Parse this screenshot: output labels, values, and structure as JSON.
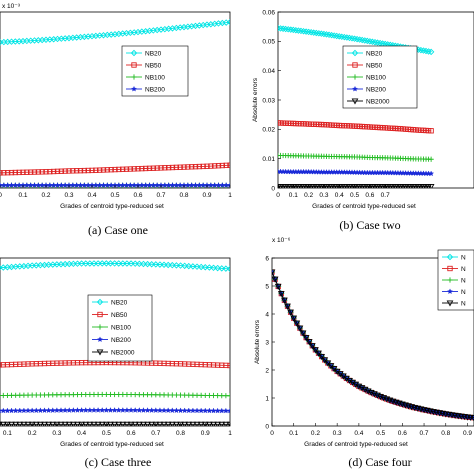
{
  "chart_data": [
    {
      "type": "line",
      "caption": "(a) Case one",
      "xlabel": "Grades of centroid type-reduced set",
      "ylabel": "",
      "exponent_label": "x 10⁻³",
      "xlim": [
        0,
        1
      ],
      "ylim": [
        0,
        6.4
      ],
      "xticks": [
        "0",
        "0.1",
        "0.2",
        "0.3",
        "0.4",
        "0.5",
        "0.6",
        "0.7",
        "0.8",
        "0.9",
        "1"
      ],
      "yticks": [],
      "legend_position": "center-right",
      "series": [
        {
          "name": "NB20",
          "color": "#00e5e5",
          "marker": "diamond",
          "x": [
            0,
            0.1,
            0.2,
            0.3,
            0.4,
            0.5,
            0.6,
            0.7,
            0.8,
            0.9,
            1
          ],
          "y": [
            5.3,
            5.34,
            5.39,
            5.45,
            5.52,
            5.59,
            5.67,
            5.76,
            5.85,
            5.94,
            6.03
          ]
        },
        {
          "name": "NB50",
          "color": "#dd2222",
          "marker": "square",
          "x": [
            0,
            0.1,
            0.2,
            0.3,
            0.4,
            0.5,
            0.6,
            0.7,
            0.8,
            0.9,
            1
          ],
          "y": [
            0.55,
            0.57,
            0.59,
            0.62,
            0.64,
            0.67,
            0.7,
            0.73,
            0.76,
            0.79,
            0.83
          ]
        },
        {
          "name": "NB100",
          "color": "#22bb22",
          "marker": "cross",
          "x": [
            0,
            0.1,
            0.2,
            0.3,
            0.4,
            0.5,
            0.6,
            0.7,
            0.8,
            0.9,
            1
          ],
          "y": [
            0.1,
            0.1,
            0.1,
            0.1,
            0.1,
            0.1,
            0.1,
            0.1,
            0.1,
            0.1,
            0.1
          ]
        },
        {
          "name": "NB200",
          "color": "#1a2ad8",
          "marker": "star",
          "x": [
            0,
            0.1,
            0.2,
            0.3,
            0.4,
            0.5,
            0.6,
            0.7,
            0.8,
            0.9,
            1
          ],
          "y": [
            0.1,
            0.1,
            0.1,
            0.1,
            0.1,
            0.1,
            0.1,
            0.1,
            0.1,
            0.1,
            0.1
          ]
        }
      ]
    },
    {
      "type": "line",
      "caption": "(b) Case two",
      "xlabel": "Grades of centroid type-reduced set",
      "ylabel": "Absolute errors",
      "exponent_label": "",
      "xlim": [
        0,
        1
      ],
      "ylim": [
        0,
        0.06
      ],
      "xticks": [
        "0",
        "0.1",
        "0.2",
        "0.3",
        "0.4",
        "0.5",
        "0.6",
        "0.7"
      ],
      "yticks": [
        "0",
        "0.01",
        "0.02",
        "0.03",
        "0.04",
        "0.05",
        "0.06"
      ],
      "legend_position": "center-right",
      "series": [
        {
          "name": "NB20",
          "color": "#00e5e5",
          "marker": "diamond",
          "x": [
            0,
            0.1,
            0.2,
            0.3,
            0.4,
            0.5,
            0.6,
            0.7,
            0.8,
            0.9,
            1
          ],
          "y": [
            0.0545,
            0.0539,
            0.0532,
            0.0525,
            0.0517,
            0.0509,
            0.05,
            0.0491,
            0.0482,
            0.0473,
            0.0464
          ]
        },
        {
          "name": "NB50",
          "color": "#dd2222",
          "marker": "square",
          "x": [
            0,
            0.1,
            0.2,
            0.3,
            0.4,
            0.5,
            0.6,
            0.7,
            0.8,
            0.9,
            1
          ],
          "y": [
            0.0222,
            0.022,
            0.0218,
            0.0216,
            0.0213,
            0.0211,
            0.0208,
            0.0205,
            0.0202,
            0.0198,
            0.0195
          ]
        },
        {
          "name": "NB100",
          "color": "#22bb22",
          "marker": "cross",
          "x": [
            0,
            0.1,
            0.2,
            0.3,
            0.4,
            0.5,
            0.6,
            0.7,
            0.8,
            0.9,
            1
          ],
          "y": [
            0.0111,
            0.011,
            0.0109,
            0.0108,
            0.0107,
            0.0106,
            0.0104,
            0.0103,
            0.0101,
            0.0099,
            0.0098
          ]
        },
        {
          "name": "NB200",
          "color": "#1a2ad8",
          "marker": "star",
          "x": [
            0,
            0.1,
            0.2,
            0.3,
            0.4,
            0.5,
            0.6,
            0.7,
            0.8,
            0.9,
            1
          ],
          "y": [
            0.0056,
            0.0055,
            0.0055,
            0.0054,
            0.0054,
            0.0053,
            0.0052,
            0.0052,
            0.0051,
            0.005,
            0.0049
          ]
        },
        {
          "name": "NB2000",
          "color": "#000000",
          "marker": "triangle-down",
          "x": [
            0,
            0.1,
            0.2,
            0.3,
            0.4,
            0.5,
            0.6,
            0.7,
            0.8,
            0.9,
            1
          ],
          "y": [
            0.0005,
            0.0005,
            0.0005,
            0.0005,
            0.0005,
            0.0005,
            0.0005,
            0.0005,
            0.0005,
            0.0005,
            0.0005
          ]
        }
      ]
    },
    {
      "type": "line",
      "caption": "(c) Case three",
      "xlabel": "Grades of centroid type-reduced set",
      "ylabel": "",
      "exponent_label": "",
      "xlim": [
        0,
        1
      ],
      "ylim": [
        0,
        1
      ],
      "xticks": [
        "0.1",
        "0.2",
        "0.3",
        "0.4",
        "0.5",
        "0.6",
        "0.7",
        "0.8",
        "0.9",
        "1"
      ],
      "yticks": [],
      "legend_position": "center-right",
      "series": [
        {
          "name": "NB20",
          "color": "#00e5e5",
          "marker": "diamond",
          "x": [
            0,
            0.1,
            0.2,
            0.3,
            0.4,
            0.5,
            0.6,
            0.7,
            0.8,
            0.9,
            1
          ],
          "y": [
            0.935,
            0.945,
            0.955,
            0.962,
            0.967,
            0.968,
            0.967,
            0.962,
            0.955,
            0.945,
            0.935
          ]
        },
        {
          "name": "NB50",
          "color": "#dd2222",
          "marker": "square",
          "x": [
            0,
            0.1,
            0.2,
            0.3,
            0.4,
            0.5,
            0.6,
            0.7,
            0.8,
            0.9,
            1
          ],
          "y": [
            0.36,
            0.365,
            0.37,
            0.374,
            0.377,
            0.378,
            0.377,
            0.374,
            0.37,
            0.365,
            0.36
          ]
        },
        {
          "name": "NB100",
          "color": "#22bb22",
          "marker": "cross",
          "x": [
            0,
            0.1,
            0.2,
            0.3,
            0.4,
            0.5,
            0.6,
            0.7,
            0.8,
            0.9,
            1
          ],
          "y": [
            0.18,
            0.182,
            0.184,
            0.186,
            0.187,
            0.188,
            0.187,
            0.186,
            0.184,
            0.182,
            0.18
          ]
        },
        {
          "name": "NB200",
          "color": "#1a2ad8",
          "marker": "star",
          "x": [
            0,
            0.1,
            0.2,
            0.3,
            0.4,
            0.5,
            0.6,
            0.7,
            0.8,
            0.9,
            1
          ],
          "y": [
            0.09,
            0.091,
            0.092,
            0.093,
            0.094,
            0.094,
            0.094,
            0.093,
            0.092,
            0.091,
            0.09
          ]
        },
        {
          "name": "NB2000",
          "color": "#000000",
          "marker": "triangle-down",
          "x": [
            0,
            0.1,
            0.2,
            0.3,
            0.4,
            0.5,
            0.6,
            0.7,
            0.8,
            0.9,
            1
          ],
          "y": [
            0.01,
            0.01,
            0.01,
            0.01,
            0.01,
            0.01,
            0.01,
            0.01,
            0.01,
            0.01,
            0.01
          ]
        }
      ]
    },
    {
      "type": "line",
      "caption": "(d) Case four",
      "xlabel": "Grades of centroid type-reduced set",
      "ylabel": "Absolute errors",
      "exponent_label": "x 10⁻⁶",
      "xlim": [
        0,
        1
      ],
      "ylim": [
        0,
        6
      ],
      "xticks": [
        "0",
        "0.1",
        "0.2",
        "0.3",
        "0.4",
        "0.5",
        "0.6",
        "0.7",
        "0.8",
        "0.9"
      ],
      "yticks": [
        "0",
        "1",
        "2",
        "3",
        "4",
        "5",
        "6"
      ],
      "legend_position": "top-right",
      "legend_entries": [
        "N",
        "N",
        "N",
        "N",
        "N"
      ],
      "series": [
        {
          "name": "",
          "color": "#00e5e5",
          "marker": "diamond",
          "x": [
            0,
            0.05,
            0.1,
            0.15,
            0.2,
            0.25,
            0.3,
            0.35,
            0.4,
            0.45,
            0.5,
            0.55,
            0.6,
            0.65,
            0.7,
            0.75,
            0.8,
            0.85,
            0.9,
            0.95,
            1
          ],
          "y": [
            5.5,
            4.6,
            3.85,
            3.23,
            2.72,
            2.3,
            1.95,
            1.66,
            1.42,
            1.22,
            1.05,
            0.9,
            0.78,
            0.67,
            0.58,
            0.5,
            0.43,
            0.37,
            0.32,
            0.28,
            0.24
          ]
        },
        {
          "name": "",
          "color": "#dd2222",
          "marker": "square",
          "x": [
            0,
            0.05,
            0.1,
            0.15,
            0.2,
            0.25,
            0.3,
            0.35,
            0.4,
            0.45,
            0.5,
            0.55,
            0.6,
            0.65,
            0.7,
            0.75,
            0.8,
            0.85,
            0.9,
            0.95,
            1
          ],
          "y": [
            5.5,
            4.6,
            3.85,
            3.23,
            2.72,
            2.3,
            1.95,
            1.66,
            1.42,
            1.22,
            1.05,
            0.9,
            0.78,
            0.67,
            0.58,
            0.5,
            0.43,
            0.37,
            0.32,
            0.28,
            0.24
          ]
        },
        {
          "name": "",
          "color": "#22bb22",
          "marker": "cross",
          "x": [
            0,
            0.05,
            0.1,
            0.15,
            0.2,
            0.25,
            0.3,
            0.35,
            0.4,
            0.45,
            0.5,
            0.55,
            0.6,
            0.65,
            0.7,
            0.75,
            0.8,
            0.85,
            0.9,
            0.95,
            1
          ],
          "y": [
            5.5,
            4.6,
            3.85,
            3.23,
            2.72,
            2.3,
            1.95,
            1.66,
            1.42,
            1.22,
            1.05,
            0.9,
            0.78,
            0.67,
            0.58,
            0.5,
            0.43,
            0.37,
            0.32,
            0.28,
            0.24
          ]
        },
        {
          "name": "",
          "color": "#1a2ad8",
          "marker": "star",
          "x": [
            0,
            0.05,
            0.1,
            0.15,
            0.2,
            0.25,
            0.3,
            0.35,
            0.4,
            0.45,
            0.5,
            0.55,
            0.6,
            0.65,
            0.7,
            0.75,
            0.8,
            0.85,
            0.9,
            0.95,
            1
          ],
          "y": [
            5.5,
            4.6,
            3.85,
            3.23,
            2.72,
            2.3,
            1.95,
            1.66,
            1.42,
            1.22,
            1.05,
            0.9,
            0.78,
            0.67,
            0.58,
            0.5,
            0.43,
            0.37,
            0.32,
            0.28,
            0.24
          ]
        },
        {
          "name": "",
          "color": "#000000",
          "marker": "triangle-down",
          "x": [
            0,
            0.05,
            0.1,
            0.15,
            0.2,
            0.25,
            0.3,
            0.35,
            0.4,
            0.45,
            0.5,
            0.55,
            0.6,
            0.65,
            0.7,
            0.75,
            0.8,
            0.85,
            0.9,
            0.95,
            1
          ],
          "y": [
            5.5,
            4.6,
            3.85,
            3.23,
            2.72,
            2.3,
            1.95,
            1.66,
            1.42,
            1.22,
            1.05,
            0.9,
            0.78,
            0.67,
            0.58,
            0.5,
            0.43,
            0.37,
            0.32,
            0.28,
            0.24
          ]
        }
      ]
    }
  ]
}
